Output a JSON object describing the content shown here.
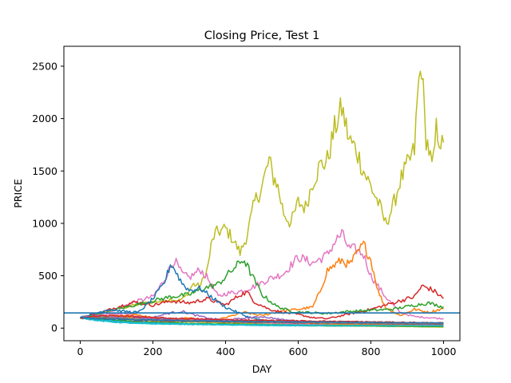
{
  "chart_data": {
    "type": "line",
    "title": "Closing Price, Test 1",
    "xlabel": "DAY",
    "ylabel": "PRICE",
    "xlim": [
      -45,
      1045
    ],
    "ylim": [
      -120,
      2690
    ],
    "xticks": [
      0,
      200,
      400,
      600,
      800,
      1000
    ],
    "yticks": [
      0,
      500,
      1000,
      1500,
      2000,
      2500
    ],
    "grid": false,
    "legend": "none",
    "reference_line": {
      "y": 145,
      "color": "#1f77b4"
    },
    "series": [
      {
        "color": "#bcbd22",
        "x": [
          0,
          50,
          100,
          150,
          200,
          230,
          250,
          270,
          290,
          310,
          330,
          350,
          360,
          370,
          380,
          400,
          420,
          440,
          450,
          460,
          480,
          500,
          520,
          530,
          540,
          560,
          580,
          600,
          620,
          640,
          660,
          680,
          700,
          720,
          740,
          760,
          780,
          800,
          820,
          840,
          860,
          880,
          900,
          920,
          930,
          940,
          950,
          960,
          970,
          980,
          1000
        ],
        "y": [
          100,
          140,
          180,
          220,
          250,
          260,
          280,
          260,
          300,
          420,
          400,
          560,
          780,
          900,
          920,
          950,
          850,
          720,
          800,
          900,
          1200,
          1350,
          1600,
          1450,
          1400,
          1100,
          1000,
          1200,
          1150,
          1400,
          1550,
          1600,
          1900,
          2100,
          1800,
          1700,
          1500,
          1350,
          1200,
          1000,
          1150,
          1400,
          1550,
          1700,
          2300,
          2520,
          1850,
          1700,
          1500,
          1900,
          1700
        ]
      },
      {
        "color": "#e377c2",
        "x": [
          0,
          50,
          100,
          150,
          200,
          230,
          250,
          260,
          280,
          300,
          330,
          350,
          380,
          400,
          440,
          480,
          520,
          560,
          600,
          640,
          680,
          700,
          720,
          740,
          760,
          780,
          800,
          840,
          880,
          920,
          960,
          1000
        ],
        "y": [
          100,
          140,
          180,
          250,
          300,
          450,
          600,
          650,
          520,
          480,
          560,
          480,
          300,
          330,
          350,
          400,
          470,
          520,
          680,
          620,
          700,
          820,
          900,
          760,
          750,
          700,
          500,
          300,
          150,
          110,
          100,
          90
        ]
      },
      {
        "color": "#ff7f0e",
        "x": [
          0,
          50,
          100,
          150,
          200,
          250,
          300,
          350,
          400,
          450,
          500,
          550,
          600,
          640,
          660,
          680,
          700,
          720,
          740,
          760,
          780,
          800,
          820,
          840,
          880,
          920,
          960,
          1000
        ],
        "y": [
          100,
          110,
          120,
          100,
          90,
          80,
          100,
          60,
          100,
          150,
          120,
          160,
          180,
          200,
          350,
          550,
          600,
          650,
          600,
          700,
          800,
          650,
          350,
          200,
          120,
          180,
          150,
          190
        ]
      },
      {
        "color": "#d62728",
        "x": [
          0,
          50,
          100,
          150,
          200,
          250,
          300,
          350,
          400,
          440,
          460,
          480,
          520,
          560,
          600,
          640,
          680,
          720,
          760,
          800,
          840,
          880,
          920,
          940,
          960,
          980,
          1000
        ],
        "y": [
          100,
          140,
          200,
          250,
          220,
          260,
          240,
          280,
          220,
          320,
          340,
          250,
          180,
          150,
          130,
          100,
          90,
          120,
          150,
          180,
          220,
          260,
          300,
          400,
          380,
          340,
          280
        ]
      },
      {
        "color": "#2ca02c",
        "x": [
          0,
          50,
          100,
          150,
          200,
          250,
          300,
          340,
          380,
          420,
          450,
          470,
          500,
          540,
          580,
          620,
          680,
          740,
          800,
          860,
          920,
          960,
          1000
        ],
        "y": [
          100,
          130,
          180,
          220,
          260,
          300,
          320,
          380,
          420,
          560,
          660,
          520,
          320,
          210,
          160,
          150,
          140,
          160,
          170,
          180,
          220,
          240,
          200
        ]
      },
      {
        "color": "#1f77b4",
        "x": [
          0,
          40,
          80,
          120,
          160,
          200,
          230,
          250,
          260,
          280,
          300,
          330,
          360,
          400,
          460,
          520,
          600,
          700,
          800,
          900,
          1000
        ],
        "y": [
          100,
          140,
          180,
          160,
          150,
          280,
          420,
          620,
          560,
          430,
          360,
          380,
          300,
          200,
          110,
          60,
          50,
          40,
          30,
          25,
          20
        ]
      },
      {
        "color": "#9467bd",
        "x": [
          0,
          40,
          80,
          120,
          160,
          200,
          240,
          280,
          320,
          360,
          400,
          440,
          500,
          560,
          620,
          680,
          740,
          800,
          860,
          920,
          980,
          1000
        ],
        "y": [
          100,
          90,
          100,
          120,
          110,
          100,
          140,
          160,
          120,
          90,
          80,
          90,
          110,
          80,
          60,
          50,
          60,
          45,
          40,
          35,
          30,
          28
        ]
      },
      {
        "color": "#8c564b",
        "x": [
          0,
          50,
          100,
          150,
          200,
          250,
          300,
          350,
          400,
          450,
          500,
          550,
          600,
          650,
          700,
          750,
          800,
          850,
          900,
          950,
          1000
        ],
        "y": [
          100,
          80,
          70,
          65,
          60,
          55,
          70,
          60,
          50,
          45,
          60,
          55,
          50,
          40,
          45,
          50,
          40,
          35,
          30,
          28,
          25
        ]
      },
      {
        "color": "#7f7f7f",
        "x": [
          0,
          50,
          100,
          150,
          200,
          300,
          400,
          500,
          600,
          700,
          800,
          900,
          1000
        ],
        "y": [
          100,
          75,
          60,
          50,
          45,
          40,
          35,
          30,
          28,
          25,
          22,
          20,
          18
        ]
      },
      {
        "color": "#17becf",
        "x": [
          0,
          50,
          100,
          150,
          200,
          300,
          400,
          500,
          600,
          700,
          800,
          900,
          1000
        ],
        "y": [
          100,
          70,
          55,
          45,
          40,
          35,
          30,
          25,
          22,
          20,
          18,
          15,
          12
        ]
      },
      {
        "color": "#bcbd22",
        "x": [
          0,
          50,
          100,
          150,
          200,
          300,
          400,
          500,
          600,
          700,
          800,
          900,
          1000
        ],
        "y": [
          100,
          110,
          120,
          90,
          70,
          60,
          50,
          40,
          30,
          25,
          20,
          15,
          10
        ]
      },
      {
        "color": "#e377c2",
        "x": [
          0,
          50,
          100,
          150,
          200,
          300,
          400,
          500,
          600,
          700,
          800,
          900,
          1000
        ],
        "y": [
          100,
          120,
          140,
          130,
          90,
          70,
          60,
          50,
          40,
          35,
          30,
          25,
          20
        ]
      },
      {
        "color": "#ff7f0e",
        "x": [
          0,
          50,
          100,
          150,
          200,
          300,
          400,
          500,
          600,
          700,
          800,
          900,
          1000
        ],
        "y": [
          100,
          90,
          110,
          130,
          100,
          80,
          60,
          70,
          50,
          40,
          30,
          28,
          24
        ]
      },
      {
        "color": "#2ca02c",
        "x": [
          0,
          50,
          100,
          150,
          200,
          300,
          400,
          500,
          600,
          700,
          800,
          900,
          1000
        ],
        "y": [
          100,
          85,
          75,
          60,
          55,
          45,
          40,
          35,
          30,
          25,
          22,
          18,
          15
        ]
      },
      {
        "color": "#9467bd",
        "x": [
          0,
          50,
          100,
          150,
          200,
          300,
          400,
          500,
          600,
          700,
          800,
          900,
          1000
        ],
        "y": [
          100,
          120,
          100,
          95,
          90,
          85,
          70,
          60,
          55,
          50,
          45,
          40,
          35
        ]
      },
      {
        "color": "#8c564b",
        "x": [
          0,
          50,
          100,
          150,
          200,
          300,
          400,
          500,
          600,
          700,
          800,
          900,
          1000
        ],
        "y": [
          100,
          95,
          90,
          80,
          75,
          65,
          60,
          55,
          50,
          48,
          45,
          42,
          40
        ]
      },
      {
        "color": "#7f7f7f",
        "x": [
          0,
          50,
          100,
          150,
          200,
          300,
          400,
          500,
          600,
          700,
          800,
          900,
          1000
        ],
        "y": [
          100,
          105,
          95,
          85,
          80,
          70,
          65,
          60,
          55,
          50,
          48,
          46,
          44
        ]
      },
      {
        "color": "#17becf",
        "x": [
          0,
          50,
          100,
          150,
          200,
          300,
          400,
          500,
          600,
          700,
          800,
          900,
          1000
        ],
        "y": [
          100,
          80,
          65,
          55,
          50,
          40,
          35,
          32,
          30,
          28,
          26,
          24,
          22
        ]
      },
      {
        "color": "#d62728",
        "x": [
          0,
          50,
          100,
          150,
          200,
          300,
          400,
          500,
          600,
          700,
          800,
          900,
          1000
        ],
        "y": [
          100,
          115,
          120,
          110,
          100,
          90,
          80,
          75,
          70,
          65,
          60,
          55,
          50
        ]
      },
      {
        "color": "#1f77b4",
        "x": [
          0,
          50,
          100,
          150,
          200,
          300,
          400,
          500,
          600,
          700,
          800,
          900,
          1000
        ],
        "y": [
          100,
          90,
          85,
          80,
          78,
          70,
          65,
          62,
          60,
          58,
          55,
          52,
          50
        ]
      }
    ]
  }
}
